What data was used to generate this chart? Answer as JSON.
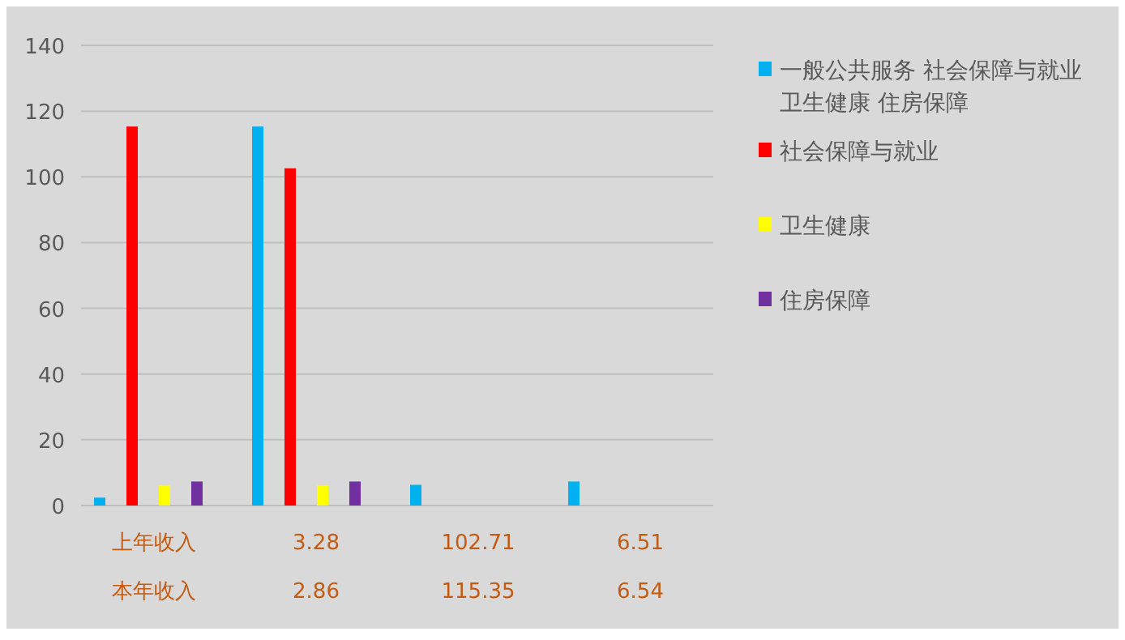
{
  "chart_data": {
    "type": "bar",
    "categories": [
      null,
      null,
      null,
      null
    ],
    "series": [
      {
        "name": "一般公共服务 社会保障与就业卫生健康 住房保障",
        "color": "#00b0f0",
        "values": [
          2.4,
          115.3,
          6.3,
          7.3
        ]
      },
      {
        "name": "社会保障与就业",
        "color": "#ff0000",
        "values": [
          115.3,
          102.6,
          null,
          null
        ]
      },
      {
        "name": "卫生健康",
        "color": "#ffff00",
        "values": [
          6.2,
          6.2,
          null,
          null
        ]
      },
      {
        "name": "住房保障",
        "color": "#7030a0",
        "values": [
          7.3,
          7.3,
          null,
          null
        ]
      }
    ],
    "ylim": [
      0,
      140
    ],
    "yticks": [
      0,
      20,
      40,
      60,
      80,
      100,
      120,
      140
    ],
    "grid": "y",
    "legend": "right",
    "annotations": [
      "上年收入",
      "3.28",
      "102.71",
      "6.51",
      "本年收入",
      "2.86",
      "115.35",
      "6.54"
    ]
  }
}
